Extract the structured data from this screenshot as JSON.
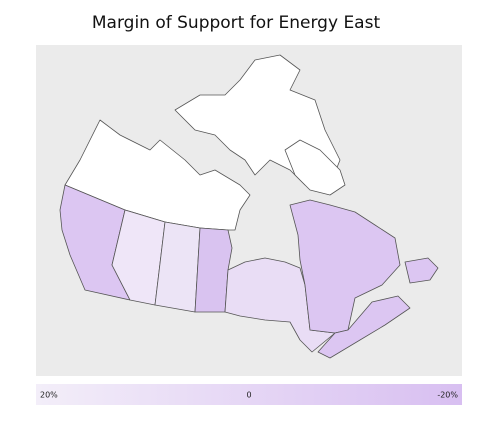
{
  "title": "Margin of Support for Energy East",
  "legend": {
    "ticks": [
      {
        "value": 20,
        "label": "20%"
      },
      0,
      {
        "value": -20,
        "label": "-20%"
      }
    ],
    "colors": [
      "#f3eef9",
      "#d8bff1"
    ]
  }
}
